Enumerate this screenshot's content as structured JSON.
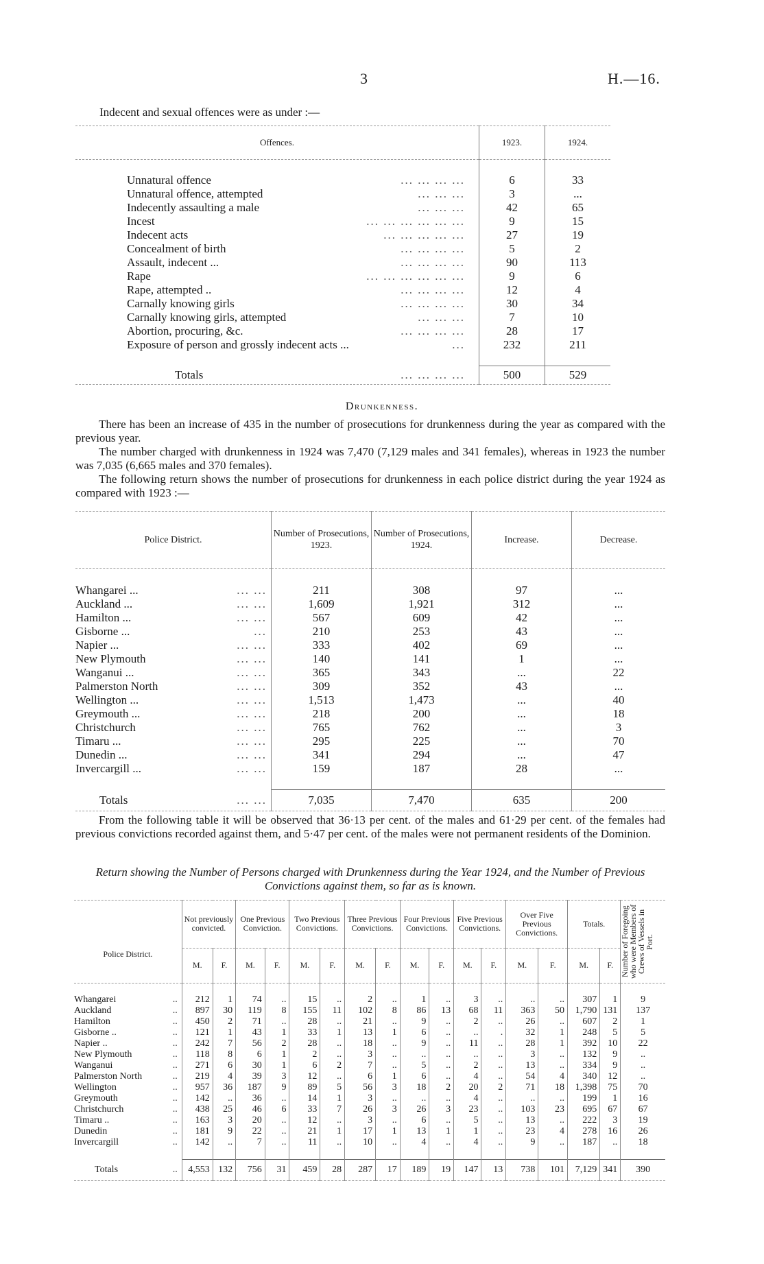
{
  "header": {
    "page_number": "3",
    "reference": "H.—16."
  },
  "sexual_offences": {
    "intro": "Indecent and sexual offences were as under :—",
    "columns": [
      "Offences.",
      "1923.",
      "1924."
    ],
    "rows": [
      {
        "offence": "Unnatural offence",
        "leader": "...   ...   ...   ...",
        "y1923": "6",
        "y1924": "33"
      },
      {
        "offence": "Unnatural offence, attempted",
        "leader": "...   ...   ...",
        "y1923": "3",
        "y1924": "..."
      },
      {
        "offence": "Indecently assaulting a male",
        "leader": "...   ...   ...",
        "y1923": "42",
        "y1924": "65"
      },
      {
        "offence": "Incest",
        "leader": "...   ...   ...   ...   ...   ...",
        "y1923": "9",
        "y1924": "15"
      },
      {
        "offence": "Indecent acts",
        "leader": "...   ...   ...   ...   ...",
        "y1923": "27",
        "y1924": "19"
      },
      {
        "offence": "Concealment of birth",
        "leader": "...   ...   ...   ...",
        "y1923": "5",
        "y1924": "2"
      },
      {
        "offence": "Assault, indecent ...",
        "leader": "...   ...   ...   ...",
        "y1923": "90",
        "y1924": "113"
      },
      {
        "offence": "Rape",
        "leader": "...   ...   ...   ...   ...   ...",
        "y1923": "9",
        "y1924": "6"
      },
      {
        "offence": "Rape, attempted ..",
        "leader": "...   ...   ...   ...",
        "y1923": "12",
        "y1924": "4"
      },
      {
        "offence": "Carnally knowing girls",
        "leader": "...   ...   ...   ...",
        "y1923": "30",
        "y1924": "34"
      },
      {
        "offence": "Carnally knowing girls, attempted",
        "leader": "...   ...   ...",
        "y1923": "7",
        "y1924": "10"
      },
      {
        "offence": "Abortion, procuring, &c.",
        "leader": "...   ...   ...   ...",
        "y1923": "28",
        "y1924": "17"
      },
      {
        "offence": "Exposure of person and grossly indecent acts ...",
        "leader": "...",
        "y1923": "232",
        "y1924": "211"
      }
    ],
    "totals": {
      "label": "Totals",
      "leader": "...   ...   ...   ...",
      "y1923": "500",
      "y1924": "529"
    }
  },
  "drunkenness": {
    "heading": "Drunkenness.",
    "paragraphs": [
      "There has been an increase of 435 in the number of prosecutions for drunkenness during the year as compared with the previous year.",
      "The number charged with drunkenness in 1924 was 7,470 (7,129 males and 341 females), whereas in 1923 the number was 7,035 (6,665 males and 370 females).",
      "The following return shows the number of prosecutions for drunkenness in each police district during the year 1924 as compared with 1923 :—"
    ],
    "prosecutions_table": {
      "columns": [
        "Police District.",
        "Number of Prosecutions, 1923.",
        "Number of Prosecutions, 1924.",
        "Increase.",
        "Decrease."
      ],
      "rows": [
        {
          "district": "Whangarei ...",
          "leader": "...   ...",
          "y1923": "211",
          "y1924": "308",
          "increase": "97",
          "decrease": "..."
        },
        {
          "district": "Auckland ...",
          "leader": "...   ...",
          "y1923": "1,609",
          "y1924": "1,921",
          "increase": "312",
          "decrease": "..."
        },
        {
          "district": "Hamilton ...",
          "leader": "...   ...",
          "y1923": "567",
          "y1924": "609",
          "increase": "42",
          "decrease": "..."
        },
        {
          "district": "Gisborne ...",
          "leader": "...",
          "y1923": "210",
          "y1924": "253",
          "increase": "43",
          "decrease": "..."
        },
        {
          "district": "Napier ...",
          "leader": "...   ...",
          "y1923": "333",
          "y1924": "402",
          "increase": "69",
          "decrease": "..."
        },
        {
          "district": "New Plymouth",
          "leader": "...   ...",
          "y1923": "140",
          "y1924": "141",
          "increase": "1",
          "decrease": "..."
        },
        {
          "district": "Wanganui ...",
          "leader": "...   ...",
          "y1923": "365",
          "y1924": "343",
          "increase": "...",
          "decrease": "22"
        },
        {
          "district": "Palmerston North",
          "leader": "...   ...",
          "y1923": "309",
          "y1924": "352",
          "increase": "43",
          "decrease": "..."
        },
        {
          "district": "Wellington ...",
          "leader": "...   ...",
          "y1923": "1,513",
          "y1924": "1,473",
          "increase": "...",
          "decrease": "40"
        },
        {
          "district": "Greymouth ...",
          "leader": "...   ...",
          "y1923": "218",
          "y1924": "200",
          "increase": "...",
          "decrease": "18"
        },
        {
          "district": "Christchurch",
          "leader": "...   ...",
          "y1923": "765",
          "y1924": "762",
          "increase": "...",
          "decrease": "3"
        },
        {
          "district": "Timaru ...",
          "leader": "...   ...",
          "y1923": "295",
          "y1924": "225",
          "increase": "...",
          "decrease": "70"
        },
        {
          "district": "Dunedin ...",
          "leader": "...   ...",
          "y1923": "341",
          "y1924": "294",
          "increase": "...",
          "decrease": "47"
        },
        {
          "district": "Invercargill ...",
          "leader": "...   ...",
          "y1923": "159",
          "y1924": "187",
          "increase": "28",
          "decrease": "..."
        }
      ],
      "totals": {
        "district": "Totals",
        "leader": "...   ...",
        "y1923": "7,035",
        "y1924": "7,470",
        "increase": "635",
        "decrease": "200"
      }
    },
    "paragraph_after": "From the following table it will be observed that 36·13 per cent. of the males and 61·29 per cent. of the females had previous convictions recorded against them, and 5·47 per cent. of the males were not permanent residents of the Dominion.",
    "return_title": "Return showing the Number of Persons charged with Drunkenness during the Year 1924, and the Number of Previous Convictions against them, so far as is known.",
    "convictions_table": {
      "district_header": "Police District.",
      "groups": [
        "Not previously convicted.",
        "One Previous Conviction.",
        "Two Previous Convictions.",
        "Three Previous Convictions.",
        "Four Previous Convictions.",
        "Five Previous Convictions.",
        "Over Five Previous Convictions.",
        "Totals."
      ],
      "sex_labels": [
        "M.",
        "F."
      ],
      "crews_header": "Number of Foregoing who were Members of Crews of Vessels in Port.",
      "rows": [
        {
          "district": "Whangarei",
          "leader": "..",
          "values": [
            "212",
            "1",
            "74",
            "..",
            "15",
            "..",
            "2",
            "..",
            "1",
            "..",
            "3",
            "..",
            "..",
            "..",
            "307",
            "1"
          ],
          "crews": "9"
        },
        {
          "district": "Auckland",
          "leader": "..",
          "values": [
            "897",
            "30",
            "119",
            "8",
            "155",
            "11",
            "102",
            "8",
            "86",
            "13",
            "68",
            "11",
            "363",
            "50",
            "1,790",
            "131"
          ],
          "crews": "137"
        },
        {
          "district": "Hamilton",
          "leader": "..",
          "values": [
            "450",
            "2",
            "71",
            "..",
            "28",
            "..",
            "21",
            "..",
            "9",
            "..",
            "2",
            "..",
            "26",
            "..",
            "607",
            "2"
          ],
          "crews": "1"
        },
        {
          "district": "Gisborne ..",
          "leader": "..",
          "values": [
            "121",
            "1",
            "43",
            "1",
            "33",
            "1",
            "13",
            "1",
            "6",
            "..",
            "..",
            ".",
            "32",
            "1",
            "248",
            "5"
          ],
          "crews": "5"
        },
        {
          "district": "Napier ..",
          "leader": "..",
          "values": [
            "242",
            "7",
            "56",
            "2",
            "28",
            "..",
            "18",
            "..",
            "9",
            "..",
            "11",
            "..",
            "28",
            "1",
            "392",
            "10"
          ],
          "crews": "22"
        },
        {
          "district": "New Plymouth",
          "leader": "..",
          "values": [
            "118",
            "8",
            "6",
            "1",
            "2",
            "..",
            "3",
            "..",
            "..",
            "..",
            "..",
            "..",
            "3",
            "..",
            "132",
            "9"
          ],
          "crews": ".."
        },
        {
          "district": "Wanganui",
          "leader": "..",
          "values": [
            "271",
            "6",
            "30",
            "1",
            "6",
            "2",
            "7",
            "..",
            "5",
            "..",
            "2",
            "..",
            "13",
            "..",
            "334",
            "9"
          ],
          "crews": ".."
        },
        {
          "district": "Palmerston North",
          "leader": "..",
          "values": [
            "219",
            "4",
            "39",
            "3",
            "12",
            "..",
            "6",
            "1",
            "6",
            "..",
            "4",
            "..",
            "54",
            "4",
            "340",
            "12"
          ],
          "crews": ".."
        },
        {
          "district": "Wellington",
          "leader": "..",
          "values": [
            "957",
            "36",
            "187",
            "9",
            "89",
            "5",
            "56",
            "3",
            "18",
            "2",
            "20",
            "2",
            "71",
            "18",
            "1,398",
            "75"
          ],
          "crews": "70"
        },
        {
          "district": "Greymouth",
          "leader": "..",
          "values": [
            "142",
            "..",
            "36",
            "..",
            "14",
            "1",
            "3",
            "..",
            "..",
            "..",
            "4",
            "..",
            "..",
            "..",
            "199",
            "1"
          ],
          "crews": "16"
        },
        {
          "district": "Christchurch",
          "leader": "..",
          "values": [
            "438",
            "25",
            "46",
            "6",
            "33",
            "7",
            "26",
            "3",
            "26",
            "3",
            "23",
            "..",
            "103",
            "23",
            "695",
            "67"
          ],
          "crews": "67"
        },
        {
          "district": "Timaru ..",
          "leader": "..",
          "values": [
            "163",
            "3",
            "20",
            "..",
            "12",
            "..",
            "3",
            "..",
            "6",
            "..",
            "5",
            "..",
            "13",
            "..",
            "222",
            "3"
          ],
          "crews": "19"
        },
        {
          "district": "Dunedin",
          "leader": "..",
          "values": [
            "181",
            "9",
            "22",
            "..",
            "21",
            "1",
            "17",
            "1",
            "13",
            "1",
            "1",
            "..",
            "23",
            "4",
            "278",
            "16"
          ],
          "crews": "26"
        },
        {
          "district": "Invercargill",
          "leader": "..",
          "values": [
            "142",
            "..",
            "7",
            "..",
            "11",
            "..",
            "10",
            "..",
            "4",
            "..",
            "4",
            "..",
            "9",
            "..",
            "187",
            ".."
          ],
          "crews": "18"
        }
      ],
      "totals": {
        "district": "Totals",
        "leader": "..",
        "values": [
          "4,553",
          "132",
          "756",
          "31",
          "459",
          "28",
          "287",
          "17",
          "189",
          "19",
          "147",
          "13",
          "738",
          "101",
          "7,129",
          "341"
        ],
        "crews": "390"
      }
    }
  }
}
